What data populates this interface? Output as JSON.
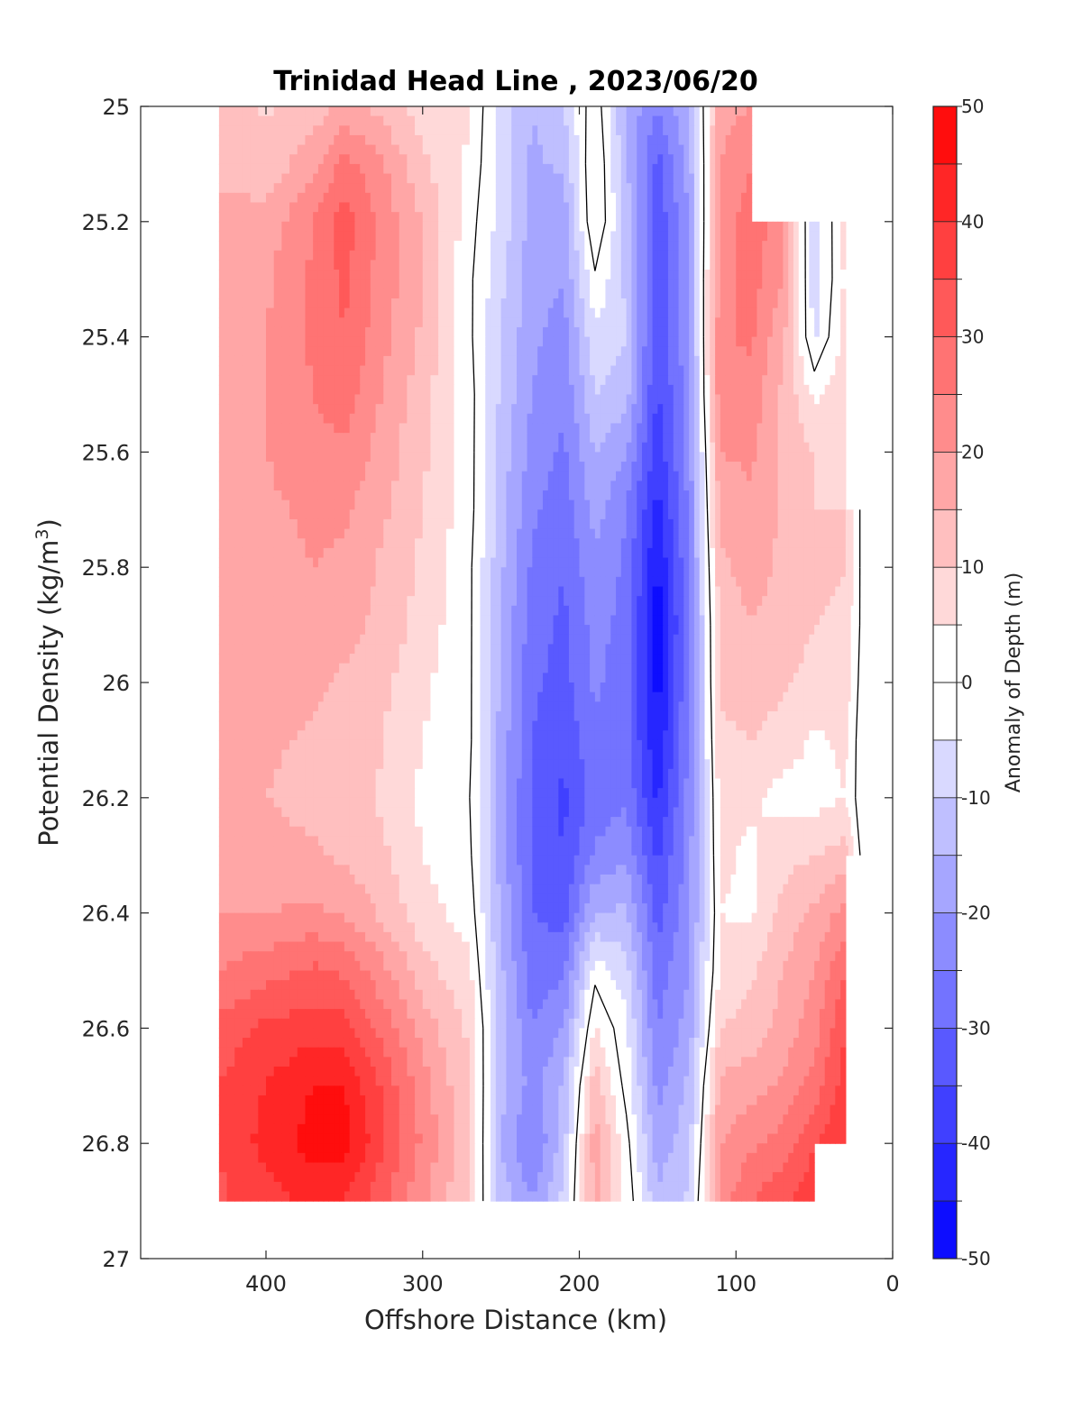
{
  "chart_data": {
    "type": "heatmap",
    "title": "Trinidad Head Line , 2023/06/20",
    "xlabel": "Offshore Distance (km)",
    "ylabel_main": "Potential Density (kg/m",
    "ylabel_sup": "3",
    "ylabel_end": ")",
    "colorbar_label": "Anomaly of Depth (m)",
    "xlim": [
      480,
      0
    ],
    "ylim": [
      25,
      27
    ],
    "x_reversed": true,
    "y_reversed": true,
    "x_ticks": [
      400,
      300,
      200,
      100,
      0
    ],
    "x_tick_labels": [
      "400",
      "300",
      "200",
      "100",
      "0"
    ],
    "y_ticks": [
      25,
      25.2,
      25.4,
      25.6,
      25.8,
      26,
      26.2,
      26.4,
      26.6,
      26.8,
      27
    ],
    "y_tick_labels": [
      "25",
      "25.2",
      "25.4",
      "25.6",
      "25.8",
      "26",
      "26.2",
      "26.4",
      "26.6",
      "26.8",
      "27"
    ],
    "colorbar_range": [
      -50,
      50
    ],
    "colorbar_step": 5,
    "colorbar_ticks": [
      50,
      40,
      30,
      20,
      10,
      0,
      -10,
      -20,
      -30,
      -40,
      -50
    ],
    "colorbar_tick_labels": [
      "50",
      "40",
      "30",
      "20",
      "10",
      "0",
      "-10",
      "-20",
      "-30",
      "-40",
      "-50"
    ],
    "colormap": "blue-white-red",
    "zero_contour": true,
    "grid": false,
    "colors": {
      "positive_max": "#ff0000",
      "negative_max": "#0000ff",
      "zero": "#ffffff"
    },
    "x": [
      430,
      400,
      370,
      350,
      330,
      300,
      270,
      250,
      230,
      210,
      190,
      170,
      150,
      130,
      110,
      90,
      70,
      50,
      30,
      20
    ],
    "y": [
      25,
      25.1,
      25.2,
      25.3,
      25.4,
      25.5,
      25.6,
      25.7,
      25.8,
      25.9,
      26,
      26.1,
      26.2,
      26.3,
      26.4,
      26.5,
      26.6,
      26.7,
      26.8,
      26.9
    ],
    "z": [
      [
        13,
        9,
        12,
        16,
        14,
        7,
        6,
        -8,
        -15,
        -10,
        4,
        -16,
        -25,
        -15,
        18,
        20,
        null,
        null,
        null,
        null
      ],
      [
        14,
        12,
        18,
        27,
        22,
        11,
        4,
        -7,
        -16,
        -14,
        6,
        -14,
        -32,
        -18,
        20,
        25,
        null,
        null,
        null,
        null
      ],
      [
        16,
        17,
        25,
        33,
        25,
        15,
        2,
        -7,
        -17,
        -18,
        6,
        -12,
        -34,
        -20,
        22,
        28,
        22,
        -9,
        7,
        null
      ],
      [
        17,
        19,
        26,
        31,
        24,
        15,
        1,
        -9,
        -18,
        -20,
        -1,
        -11,
        -34,
        -20,
        23,
        27,
        20,
        -8,
        6,
        null
      ],
      [
        18,
        20,
        26,
        30,
        23,
        14,
        1,
        -10,
        -19,
        -22,
        -6,
        -10,
        -35,
        -21,
        24,
        26,
        16,
        -6,
        7,
        null
      ],
      [
        19,
        20,
        25,
        28,
        21,
        12,
        2,
        -11,
        -20,
        -24,
        -10,
        -13,
        -36,
        -22,
        24,
        23,
        14,
        4,
        8,
        null
      ],
      [
        19,
        20,
        23,
        24,
        19,
        11,
        2,
        -12,
        -22,
        -26,
        -15,
        -20,
        -38,
        -23,
        20,
        21,
        14,
        10,
        9,
        null
      ],
      [
        18,
        19,
        21,
        21,
        17,
        10,
        2,
        -13,
        -24,
        -28,
        -18,
        -25,
        -42,
        -24,
        17,
        19,
        14,
        10,
        10,
        -1
      ],
      [
        17,
        18,
        20,
        19,
        15,
        9,
        1,
        -14,
        -26,
        -30,
        -21,
        -26,
        -46,
        -25,
        14,
        17,
        14,
        11,
        10,
        -1
      ],
      [
        18,
        19,
        18,
        17,
        14,
        8,
        1,
        -15,
        -28,
        -31,
        -23,
        -27,
        -48,
        -26,
        12,
        15,
        13,
        10,
        9,
        -1
      ],
      [
        18,
        18,
        16,
        14,
        12,
        6,
        1,
        -16,
        -29,
        -32,
        -24,
        -28,
        -47,
        -25,
        11,
        12,
        11,
        8,
        8,
        -2
      ],
      [
        16,
        16,
        14,
        13,
        11,
        5,
        1,
        -17,
        -30,
        -34,
        -26,
        -28,
        -45,
        -24,
        9,
        10,
        8,
        4,
        6,
        -3
      ],
      [
        15,
        15,
        13,
        12,
        10,
        4,
        0,
        -17,
        -31,
        -36,
        -28,
        -26,
        -41,
        -23,
        7,
        6,
        3,
        3,
        5,
        -3
      ],
      [
        17,
        17,
        16,
        14,
        12,
        5,
        1,
        -17,
        -31,
        -35,
        -24,
        -21,
        -36,
        -22,
        6,
        4,
        8,
        10,
        12,
        -1
      ],
      [
        20,
        20,
        21,
        19,
        15,
        7,
        3,
        -16,
        -30,
        -32,
        -15,
        -14,
        -32,
        -22,
        5,
        4,
        12,
        16,
        22,
        null
      ],
      [
        25,
        28,
        31,
        29,
        23,
        12,
        6,
        -14,
        -28,
        -26,
        -2,
        -8,
        -28,
        -20,
        6,
        9,
        15,
        20,
        30,
        null
      ],
      [
        32,
        36,
        38,
        37,
        30,
        18,
        9,
        -12,
        -25,
        -20,
        6,
        -4,
        -25,
        -18,
        10,
        12,
        17,
        23,
        35,
        null
      ],
      [
        35,
        40,
        45,
        45,
        36,
        22,
        10,
        -13,
        -22,
        -14,
        13,
        -2,
        -22,
        -14,
        16,
        18,
        21,
        27,
        38,
        null
      ],
      [
        35,
        42,
        47,
        47,
        38,
        24,
        11,
        -15,
        -26,
        -12,
        18,
        2,
        -18,
        -12,
        20,
        24,
        27,
        35,
        40,
        null
      ],
      [
        34,
        38,
        41,
        40,
        33,
        21,
        9,
        -12,
        -20,
        -8,
        16,
        4,
        -14,
        -9,
        22,
        30,
        34,
        38,
        null,
        null
      ]
    ]
  }
}
